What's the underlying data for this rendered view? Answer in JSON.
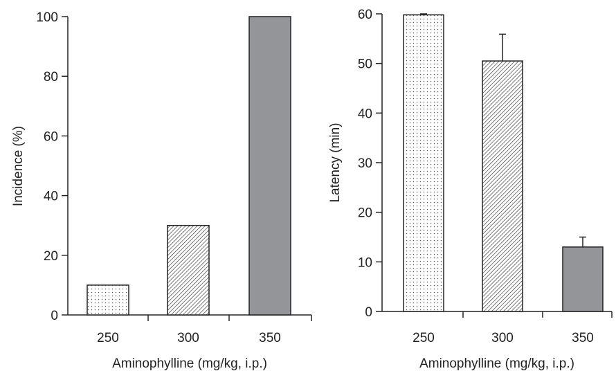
{
  "chart_data": [
    {
      "type": "bar",
      "categories": [
        "250",
        "300",
        "350"
      ],
      "values": [
        10,
        30,
        100
      ],
      "xlabel": "Aminophylline (mg/kg, i.p.)",
      "ylabel": "Incidence (%)",
      "ylim": [
        0,
        100
      ],
      "yticks": [
        "0",
        "20",
        "40",
        "60",
        "80",
        "100"
      ],
      "grid": false,
      "bar_fills": [
        "dotted",
        "hatched",
        "solid-gray"
      ],
      "bar_color": "#939598"
    },
    {
      "type": "bar",
      "categories": [
        "250",
        "300",
        "350"
      ],
      "values": [
        59.8,
        50.5,
        13
      ],
      "errors": [
        0.2,
        5.4,
        2
      ],
      "xlabel": "Aminophylline (mg/kg, i.p.)",
      "ylabel": "Latency (min)",
      "ylim": [
        0,
        60
      ],
      "yticks": [
        "0",
        "10",
        "20",
        "30",
        "40",
        "50",
        "60"
      ],
      "grid": false,
      "bar_fills": [
        "dotted",
        "hatched",
        "solid-gray"
      ],
      "bar_color": "#939598"
    }
  ]
}
